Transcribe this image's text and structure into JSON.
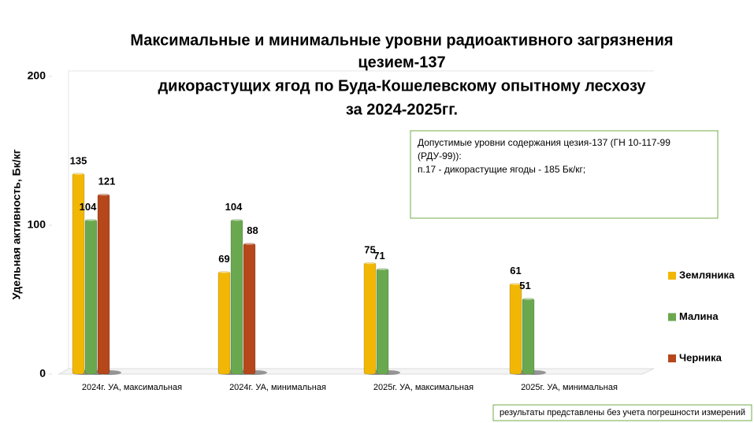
{
  "chart_data": {
    "type": "bar",
    "title_lines": [
      "Максимальные и минимальные уровни радиоактивного загрязнения",
      "цезием-137",
      "дикорастущих ягод по Буда-Кошелевскому опытному лесхозу",
      "за 2024-2025гг."
    ],
    "y_label": "Удельная активность, Бк/кг",
    "categories": [
      "2024г. УА, максимальная",
      "2024г. УА, минимальная",
      "2025г. УА, максимальная",
      "2025г. УА, минимальная"
    ],
    "series": [
      {
        "name": "Земляника",
        "color": "#f2b705",
        "values": [
          135,
          69,
          75,
          61
        ]
      },
      {
        "name": "Малина",
        "color": "#6aa84f",
        "values": [
          104,
          104,
          71,
          51
        ]
      },
      {
        "name": "Черника",
        "color": "#b5471b",
        "values": [
          121,
          88,
          null,
          null
        ]
      }
    ],
    "ylim": [
      0,
      200
    ],
    "yticks": [
      0,
      100,
      200
    ],
    "grid": false,
    "legend": "right",
    "annotation_lines": [
      "Допустимые уровни содержания цезия-137 (ГН 10-117-99",
      "(РДУ-99)):",
      "п.17 - дикорастущие ягоды - 185 Бк/кг;"
    ],
    "footnote": "результаты представлены без учета погрешности измерений"
  }
}
